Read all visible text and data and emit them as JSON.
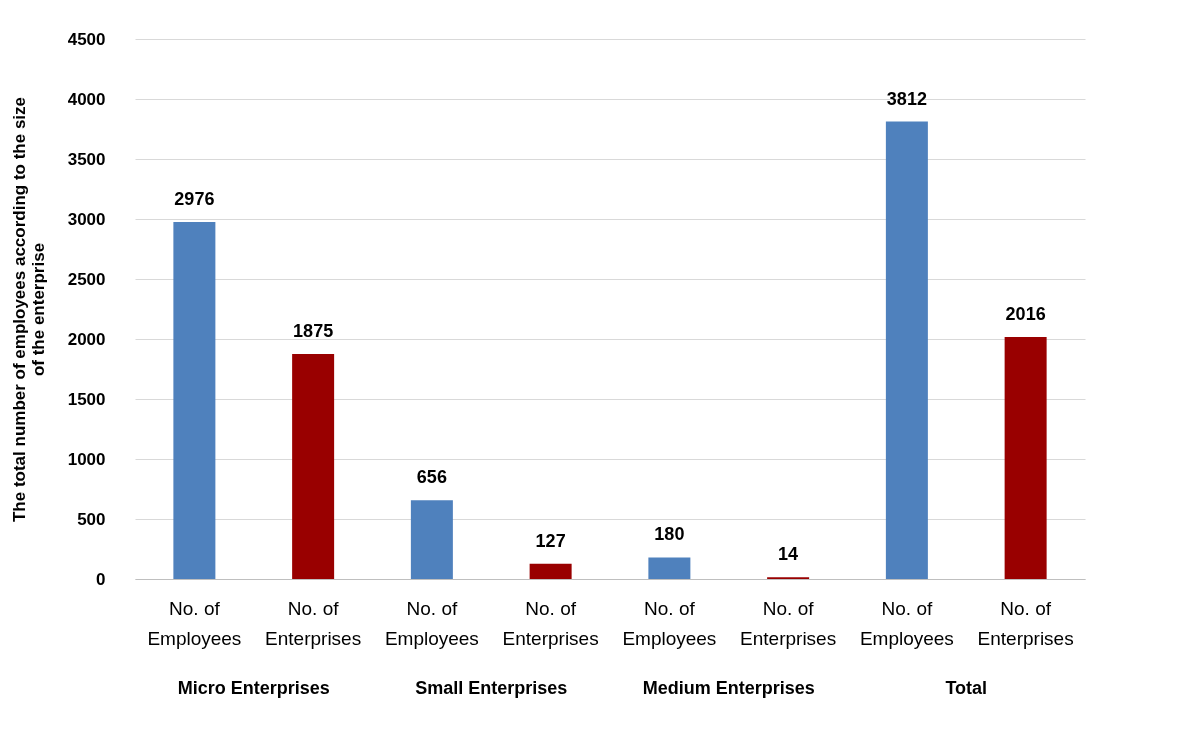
{
  "chart_data": {
    "type": "bar",
    "ylabel": "The total number of employees according to the size of the enterprise",
    "categories": [
      "No. of Employees",
      "No. of Enterprises",
      "No. of Employees",
      "No. of Enterprises",
      "No. of Employees",
      "No. of Enterprises",
      "No. of Employees",
      "No. of Enterprises"
    ],
    "values": [
      2976,
      1875,
      656,
      127,
      180,
      14,
      3812,
      2016
    ],
    "colors": [
      "#4f81bd",
      "#990000",
      "#4f81bd",
      "#990000",
      "#4f81bd",
      "#990000",
      "#4f81bd",
      "#990000"
    ],
    "annotations": [
      "Micro Enterprises",
      "Small Enterprises",
      "Medium Enterprises",
      "Total"
    ],
    "ylim": [
      0,
      4500
    ],
    "yticks": [
      0,
      500,
      1000,
      1500,
      2000,
      2500,
      3000,
      3500,
      4000,
      4500
    ],
    "grid": "y",
    "data_labels": true,
    "legend": false
  }
}
